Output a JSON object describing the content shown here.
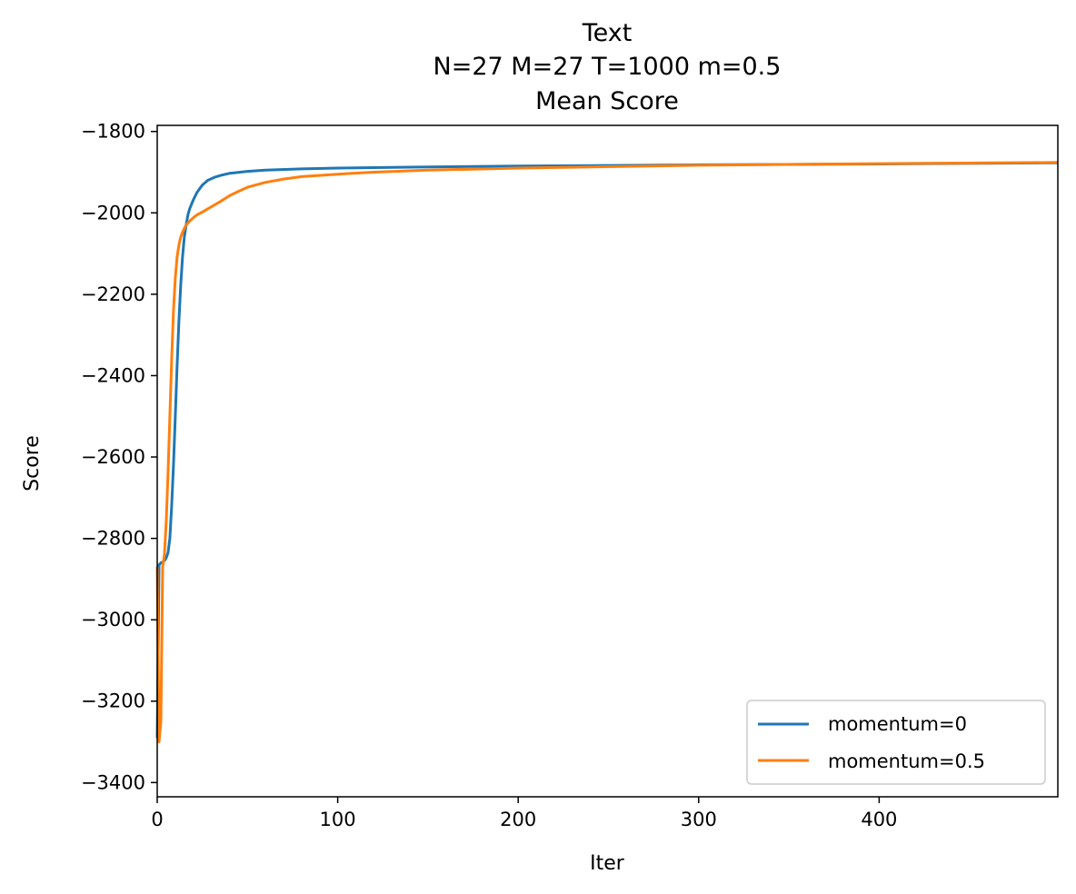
{
  "chart_data": {
    "type": "line",
    "title": "Text",
    "subtitle_lines": [
      "N=27 M=27 T=1000 m=0.5",
      "Mean Score"
    ],
    "xlabel": "Iter",
    "ylabel": "Score",
    "xlim": [
      0,
      499
    ],
    "ylim": [
      -3435,
      -1785
    ],
    "xticks": [
      0,
      100,
      200,
      300,
      400
    ],
    "xtick_labels": [
      "0",
      "100",
      "200",
      "300",
      "400"
    ],
    "yticks": [
      -1800,
      -2000,
      -2200,
      -2400,
      -2600,
      -2800,
      -3000,
      -3200,
      -3400
    ],
    "ytick_labels": [
      "−1800",
      "−2000",
      "−2200",
      "−2400",
      "−2600",
      "−2800",
      "−3000",
      "−3200",
      "−3400"
    ],
    "grid": false,
    "legend_position": "lower-right",
    "series": [
      {
        "name": "momentum=0",
        "color": "#1f77b4",
        "x": [
          0,
          1,
          2,
          3,
          4,
          5,
          6,
          7,
          8,
          9,
          10,
          11,
          12,
          13,
          14,
          15,
          16,
          17,
          18,
          20,
          22,
          25,
          28,
          32,
          36,
          40,
          50,
          60,
          80,
          100,
          150,
          200,
          300,
          400,
          499
        ],
        "y": [
          -3290,
          -2865,
          -2860,
          -2858,
          -2855,
          -2848,
          -2835,
          -2800,
          -2720,
          -2620,
          -2500,
          -2380,
          -2270,
          -2180,
          -2110,
          -2060,
          -2030,
          -2005,
          -1990,
          -1968,
          -1950,
          -1932,
          -1920,
          -1912,
          -1907,
          -1903,
          -1898,
          -1895,
          -1892,
          -1890,
          -1887,
          -1885,
          -1882,
          -1880,
          -1877
        ]
      },
      {
        "name": "momentum=0.5",
        "color": "#ff7f0e",
        "x": [
          0,
          1,
          2,
          3,
          4,
          5,
          6,
          7,
          8,
          9,
          10,
          11,
          12,
          13,
          14,
          15,
          16,
          18,
          20,
          22,
          25,
          30,
          35,
          40,
          45,
          50,
          60,
          70,
          80,
          100,
          120,
          150,
          200,
          300,
          400,
          499
        ],
        "y": [
          -2870,
          -3300,
          -3250,
          -2870,
          -2840,
          -2760,
          -2640,
          -2500,
          -2360,
          -2240,
          -2160,
          -2110,
          -2080,
          -2060,
          -2048,
          -2038,
          -2030,
          -2020,
          -2012,
          -2005,
          -1998,
          -1985,
          -1972,
          -1958,
          -1947,
          -1937,
          -1925,
          -1917,
          -1911,
          -1905,
          -1900,
          -1895,
          -1890,
          -1883,
          -1879,
          -1876
        ]
      }
    ]
  }
}
